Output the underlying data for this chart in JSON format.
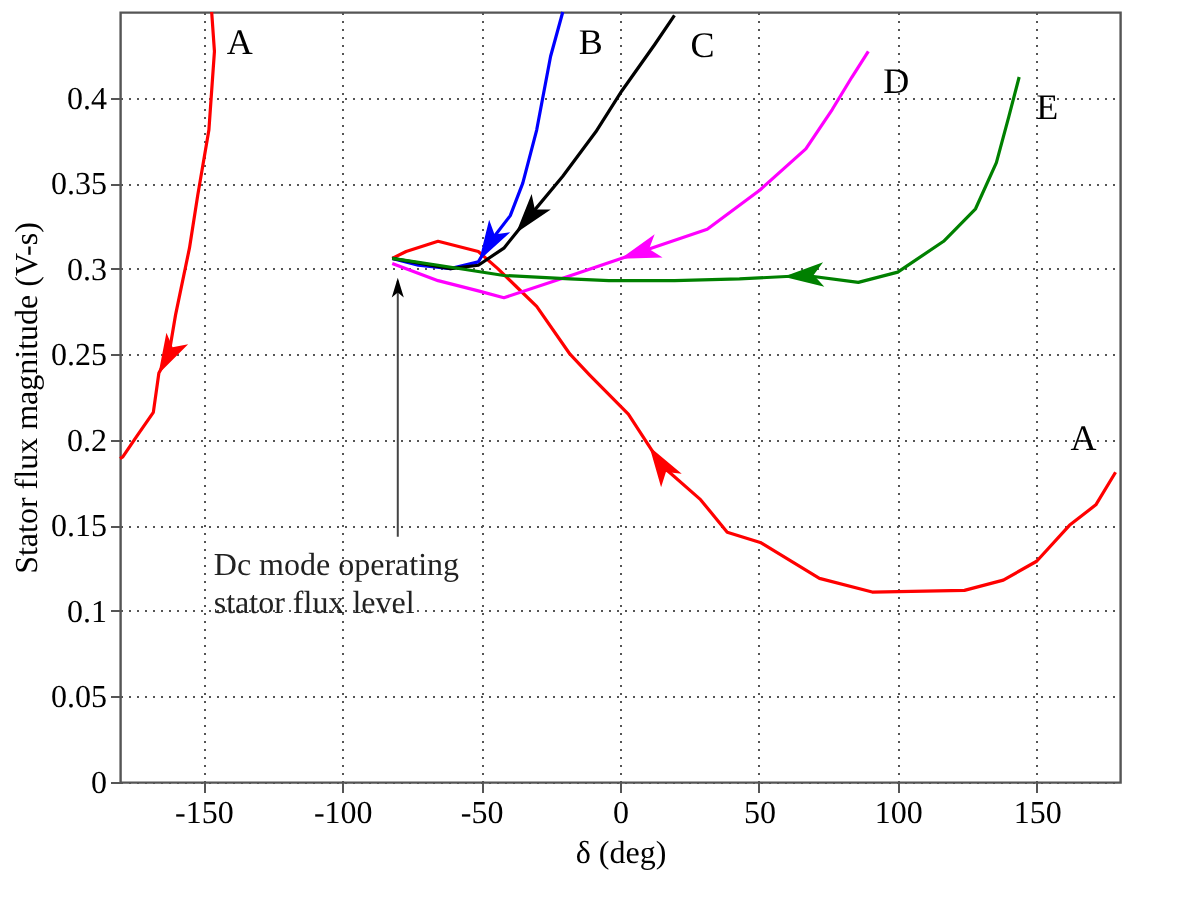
{
  "chart_data": {
    "type": "line",
    "xlabel": "δ (deg)",
    "ylabel": "Stator flux magnitude (V-s)",
    "xlim": [
      -180,
      180
    ],
    "ylim": [
      0,
      0.45
    ],
    "xticks": [
      -150,
      -100,
      -50,
      0,
      50,
      100,
      150
    ],
    "yticks": [
      0,
      0.05,
      0.1,
      0.15,
      0.2,
      0.25,
      0.3,
      0.35,
      0.4
    ],
    "grid": true,
    "legend": false,
    "line_style": "solid",
    "marker": "none",
    "series": [
      {
        "name": "A",
        "color": "#ff0000",
        "x": [
          -147,
          -146,
          -148,
          -152,
          -155,
          -160,
          -162.4,
          -166,
          -168,
          -174,
          -179,
          -180
        ],
        "values": [
          0.45,
          0.427,
          0.381,
          0.343,
          0.312,
          0.273,
          0.25,
          0.239,
          0.216,
          0.202,
          0.19,
          0.189
        ]
      },
      {
        "name": "A",
        "color": "#ff0000",
        "x": [
          178.4,
          171.3,
          161.8,
          150,
          138,
          124,
          90.8,
          71.8,
          50.5,
          38.6,
          29,
          15,
          3,
          -11,
          -18,
          -30,
          -37,
          -44,
          -51,
          -65.5,
          -77,
          -82
        ],
        "values": [
          0.181,
          0.162,
          0.15,
          0.129,
          0.118,
          0.112,
          0.111,
          0.119,
          0.14,
          0.146,
          0.165,
          0.185,
          0.215,
          0.238,
          0.25,
          0.278,
          0.289,
          0.3,
          0.31,
          0.316,
          0.31,
          0.306
        ]
      },
      {
        "name": "B",
        "color": "#0000ff",
        "x": [
          -20.6,
          -25,
          -30,
          -35,
          -39.5,
          -46.6,
          -51,
          -61,
          -72.6,
          -82
        ],
        "values": [
          0.45,
          0.424,
          0.381,
          0.35,
          0.331,
          0.316,
          0.304,
          0.3,
          0.302,
          0.306
        ]
      },
      {
        "name": "C",
        "color": "#000000",
        "x": [
          19.6,
          12.5,
          0.7,
          -8.7,
          -20.6,
          -32.4,
          -41.8,
          -51,
          -61,
          -82
        ],
        "values": [
          0.448,
          0.431,
          0.404,
          0.38,
          0.354,
          0.331,
          0.312,
          0.302,
          0.3,
          0.306
        ]
      },
      {
        "name": "D",
        "color": "#ff00ff",
        "x": [
          89.4,
          83.5,
          76.4,
          66.9,
          50.4,
          31.4,
          7.8,
          -15.8,
          -41.8,
          -51,
          -65.5,
          -82
        ],
        "values": [
          0.427,
          0.412,
          0.393,
          0.37,
          0.346,
          0.323,
          0.31,
          0.297,
          0.283,
          0.287,
          0.293,
          0.303
        ]
      },
      {
        "name": "E",
        "color": "#008000",
        "x": [
          143.7,
          140,
          135.5,
          128,
          116.5,
          100,
          85.8,
          66.9,
          43,
          19.6,
          -4,
          -18,
          -41.8,
          -65.5,
          -82
        ],
        "values": [
          0.412,
          0.389,
          0.362,
          0.335,
          0.316,
          0.298,
          0.292,
          0.296,
          0.294,
          0.293,
          0.293,
          0.294,
          0.296,
          0.302,
          0.306
        ]
      }
    ],
    "annotations": [
      {
        "text": "Dc mode operating\nstator flux level",
        "x": -80,
        "y": 0.3
      }
    ]
  }
}
